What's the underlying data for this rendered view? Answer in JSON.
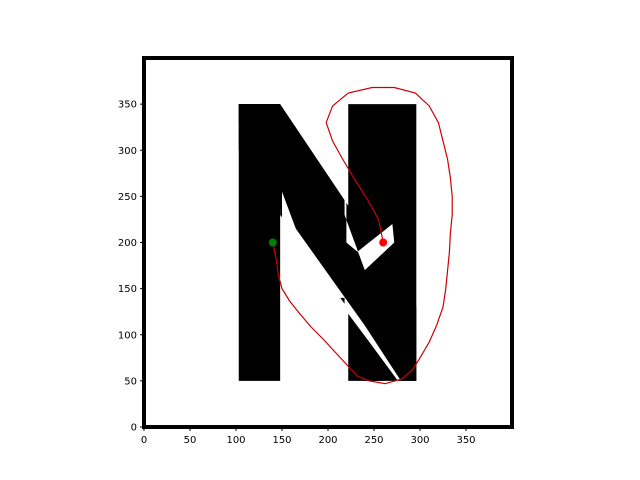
{
  "chart_data": {
    "type": "scatter",
    "title": "",
    "xlabel": "",
    "ylabel": "",
    "xlim": [
      0,
      400
    ],
    "ylim": [
      0,
      400
    ],
    "xticks": [
      0,
      50,
      100,
      150,
      200,
      250,
      300,
      350
    ],
    "yticks": [
      0,
      50,
      100,
      150,
      200,
      250,
      300,
      350
    ],
    "grid": false,
    "legend": "none",
    "obstacle_color": "#000000",
    "tree_color": "#0000ff",
    "path_color": "#cc0000",
    "obstacles": [
      {
        "points": [
          [
            103,
            50
          ],
          [
            103,
            350
          ],
          [
            148,
            350
          ],
          [
            240,
            218
          ],
          [
            240,
            50
          ],
          [
            222,
            50
          ],
          [
            222,
            350
          ],
          [
            296,
            350
          ],
          [
            296,
            50
          ]
        ],
        "kind": "n-outline-ref"
      }
    ],
    "start": {
      "x": 260,
      "y": 200,
      "color": "#ff0000"
    },
    "goal": {
      "x": 140,
      "y": 200,
      "color": "#008000"
    },
    "path": [
      [
        260,
        200
      ],
      [
        255,
        225
      ],
      [
        242,
        248
      ],
      [
        228,
        270
      ],
      [
        215,
        292
      ],
      [
        205,
        310
      ],
      [
        198,
        330
      ],
      [
        205,
        348
      ],
      [
        222,
        362
      ],
      [
        248,
        368
      ],
      [
        272,
        368
      ],
      [
        295,
        362
      ],
      [
        310,
        348
      ],
      [
        320,
        330
      ],
      [
        325,
        310
      ],
      [
        330,
        290
      ],
      [
        333,
        270
      ],
      [
        335,
        250
      ],
      [
        335,
        230
      ],
      [
        333,
        210
      ],
      [
        332,
        190
      ],
      [
        330,
        170
      ],
      [
        328,
        150
      ],
      [
        325,
        130
      ],
      [
        318,
        110
      ],
      [
        310,
        92
      ],
      [
        300,
        75
      ],
      [
        292,
        62
      ],
      [
        280,
        52
      ],
      [
        262,
        47
      ],
      [
        245,
        50
      ],
      [
        232,
        55
      ],
      [
        220,
        68
      ],
      [
        207,
        82
      ],
      [
        195,
        95
      ],
      [
        182,
        108
      ],
      [
        170,
        122
      ],
      [
        158,
        137
      ],
      [
        150,
        150
      ],
      [
        146,
        165
      ],
      [
        144,
        180
      ],
      [
        140,
        200
      ]
    ]
  }
}
